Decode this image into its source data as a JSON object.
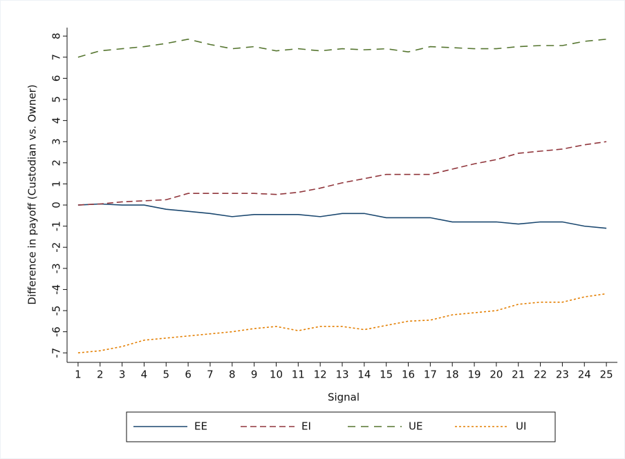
{
  "chart_data": {
    "type": "line",
    "x_label": "Signal",
    "y_label": "Difference in payoff (Custodian vs. Owner)",
    "x": [
      1,
      2,
      3,
      4,
      5,
      6,
      7,
      8,
      9,
      10,
      11,
      12,
      13,
      14,
      15,
      16,
      17,
      18,
      19,
      20,
      21,
      22,
      23,
      24,
      25
    ],
    "xlim": [
      0.5,
      25.5
    ],
    "xticks": [
      1,
      2,
      3,
      4,
      5,
      6,
      7,
      8,
      9,
      10,
      11,
      12,
      13,
      14,
      15,
      16,
      17,
      18,
      19,
      20,
      21,
      22,
      23,
      24,
      25
    ],
    "ylim": [
      -7.45,
      8.4
    ],
    "yticks": [
      -7,
      -6,
      -5,
      -4,
      -3,
      -2,
      -1,
      0,
      1,
      2,
      3,
      4,
      5,
      6,
      7,
      8
    ],
    "grid": false,
    "legend": "bottom",
    "series": [
      {
        "name": "EE",
        "color": "#1a476f",
        "line_style": "solid",
        "values": [
          0,
          0.05,
          0,
          0,
          -0.2,
          -0.3,
          -0.4,
          -0.55,
          -0.45,
          -0.45,
          -0.45,
          -0.55,
          -0.4,
          -0.4,
          -0.6,
          -0.6,
          -0.6,
          -0.8,
          -0.8,
          -0.8,
          -0.9,
          -0.8,
          -0.8,
          -1,
          -1.1
        ]
      },
      {
        "name": "EI",
        "color": "#90353b",
        "line_style": "dashed",
        "values": [
          0,
          0.05,
          0.15,
          0.2,
          0.25,
          0.55,
          0.55,
          0.55,
          0.55,
          0.5,
          0.6,
          0.8,
          1.05,
          1.25,
          1.45,
          1.45,
          1.45,
          1.7,
          1.95,
          2.15,
          2.45,
          2.55,
          2.65,
          2.85,
          3.0
        ]
      },
      {
        "name": "UE",
        "color": "#55752f",
        "line_style": "longdash",
        "values": [
          7.0,
          7.3,
          7.4,
          7.5,
          7.65,
          7.85,
          7.6,
          7.4,
          7.5,
          7.3,
          7.4,
          7.3,
          7.4,
          7.35,
          7.4,
          7.25,
          7.5,
          7.45,
          7.4,
          7.4,
          7.5,
          7.55,
          7.55,
          7.75,
          7.85
        ]
      },
      {
        "name": "UI",
        "color": "#e37e00",
        "line_style": "shortdash",
        "values": [
          -7,
          -6.9,
          -6.7,
          -6.4,
          -6.3,
          -6.2,
          -6.1,
          -6.0,
          -5.85,
          -5.75,
          -5.95,
          -5.75,
          -5.75,
          -5.9,
          -5.7,
          -5.5,
          -5.45,
          -5.2,
          -5.1,
          -5.0,
          -4.7,
          -4.6,
          -4.6,
          -4.35,
          -4.2
        ]
      }
    ]
  }
}
